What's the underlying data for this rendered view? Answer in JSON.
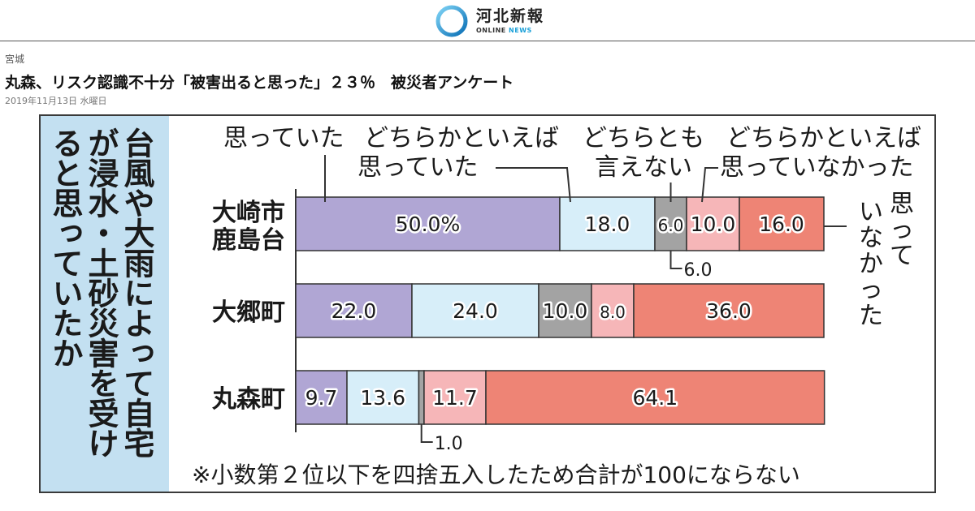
{
  "site": {
    "logo_name": "河北新報",
    "logo_sub_a": "ONLINE",
    "logo_sub_b": "NEWS",
    "accent": "#1aa0d8"
  },
  "article": {
    "category": "宮城",
    "headline": "丸森、リスク認識不十分「被害出ると思った」２３％　被災者アンケート",
    "date": "2019年11月13日 水曜日"
  },
  "chart_data": {
    "type": "bar",
    "orientation": "horizontal",
    "stacked": true,
    "title": "台風や大雨によって自宅が浸水・土砂災害を受けると思っていたか",
    "categories": [
      "大崎市鹿島台",
      "大郷町",
      "丸森町"
    ],
    "series": [
      {
        "name": "思っていた",
        "color": "#b0a6d4",
        "values": [
          50.0,
          22.0,
          9.7
        ],
        "labels": [
          "50.0%",
          "22.0",
          "9.7"
        ]
      },
      {
        "name": "どちらかといえば思っていた",
        "color": "#d7eef9",
        "values": [
          18.0,
          24.0,
          13.6
        ],
        "labels": [
          "18.0",
          "24.0",
          "13.6"
        ]
      },
      {
        "name": "どちらとも言えない",
        "color": "#a3a3a3",
        "values": [
          6.0,
          10.0,
          1.0
        ],
        "labels": [
          "6.0",
          "10.0",
          "1.0"
        ]
      },
      {
        "name": "どちらかといえば思っていなかった",
        "color": "#f6b6b8",
        "values": [
          10.0,
          8.0,
          11.7
        ],
        "labels": [
          "10.0",
          "8.0",
          "11.7"
        ]
      },
      {
        "name": "思っていなかった",
        "color": "#ee8475",
        "values": [
          16.0,
          36.0,
          64.1
        ],
        "labels": [
          "16.0",
          "36.0",
          "64.1"
        ]
      }
    ],
    "legend_lines": [
      [
        "思っていた"
      ],
      [
        "どちらかといえば",
        "思っていた"
      ],
      [
        "どちらとも",
        "言えない"
      ],
      [
        "どちらかといえば",
        "思っていなかった"
      ],
      [
        "思って",
        "いなかった"
      ]
    ],
    "xlim": [
      0,
      100
    ],
    "note": "※小数第２位以下を四捨五入したため合計が100にならない",
    "grid": false,
    "legend": "top"
  }
}
